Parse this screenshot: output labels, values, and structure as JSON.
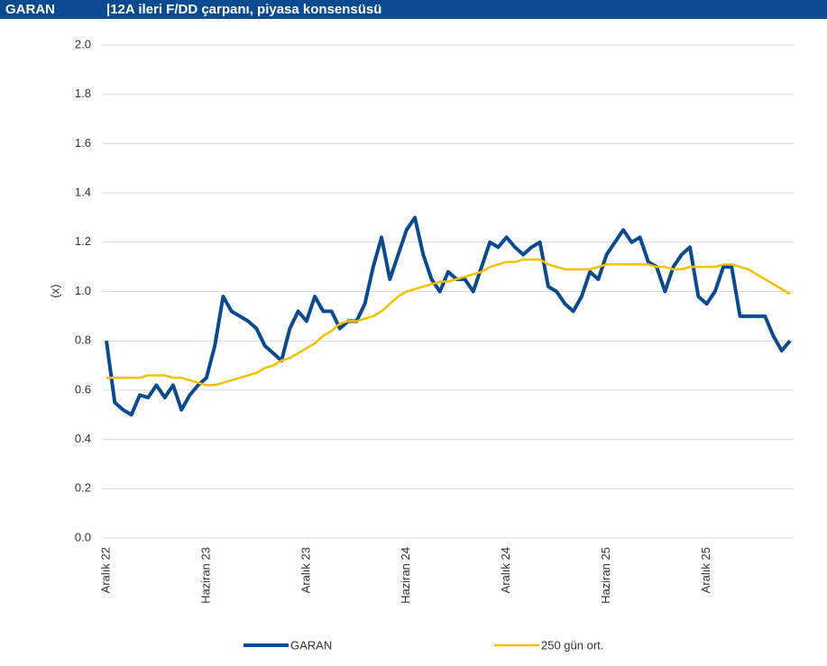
{
  "header": {
    "ticker": "GARAN",
    "title": "|12A ileri F/DD çarpanı, piyasa konsensüsü"
  },
  "chart_data": {
    "type": "line",
    "ylabel": "(x)",
    "categories": [
      "Aralık 22",
      null,
      null,
      null,
      null,
      null,
      null,
      null,
      null,
      null,
      null,
      null,
      "Haziran 23",
      null,
      null,
      null,
      null,
      null,
      null,
      null,
      null,
      null,
      null,
      null,
      "Aralık 23",
      null,
      null,
      null,
      null,
      null,
      null,
      null,
      null,
      null,
      null,
      null,
      "Haziran 24",
      null,
      null,
      null,
      null,
      null,
      null,
      null,
      null,
      null,
      null,
      null,
      "Aralık 24",
      null,
      null,
      null,
      null,
      null,
      null,
      null,
      null,
      null,
      null,
      null,
      "Haziran 25",
      null,
      null,
      null,
      null,
      null,
      null,
      null,
      null,
      null,
      null,
      null,
      "Aralık 25",
      null,
      null,
      null,
      null,
      null,
      null,
      null,
      null,
      null,
      null
    ],
    "series": [
      {
        "name": "GARAN",
        "color": "#0b4a8f",
        "width": 4,
        "values": [
          0.8,
          0.55,
          0.52,
          0.5,
          0.58,
          0.57,
          0.62,
          0.57,
          0.62,
          0.52,
          0.58,
          0.62,
          0.65,
          0.78,
          0.98,
          0.92,
          0.9,
          0.88,
          0.85,
          0.78,
          0.75,
          0.72,
          0.85,
          0.92,
          0.88,
          0.98,
          0.92,
          0.92,
          0.85,
          0.88,
          0.88,
          0.95,
          1.1,
          1.22,
          1.05,
          1.15,
          1.25,
          1.3,
          1.15,
          1.05,
          1.0,
          1.08,
          1.05,
          1.05,
          1.0,
          1.1,
          1.2,
          1.18,
          1.22,
          1.18,
          1.15,
          1.18,
          1.2,
          1.02,
          1.0,
          0.95,
          0.92,
          0.98,
          1.08,
          1.05,
          1.15,
          1.2,
          1.25,
          1.2,
          1.22,
          1.12,
          1.1,
          1.0,
          1.1,
          1.15,
          1.18,
          0.98,
          0.95,
          1.0,
          1.1,
          1.1,
          0.9,
          0.9,
          0.9,
          0.9,
          0.82,
          0.76,
          0.8
        ]
      },
      {
        "name": "250 gün ort.",
        "color": "#f5c000",
        "width": 2.5,
        "values": [
          0.65,
          0.65,
          0.65,
          0.65,
          0.65,
          0.66,
          0.66,
          0.66,
          0.65,
          0.65,
          0.64,
          0.63,
          0.62,
          0.62,
          0.63,
          0.64,
          0.65,
          0.66,
          0.67,
          0.69,
          0.7,
          0.72,
          0.73,
          0.75,
          0.77,
          0.79,
          0.82,
          0.84,
          0.87,
          0.88,
          0.88,
          0.89,
          0.9,
          0.92,
          0.95,
          0.98,
          1.0,
          1.01,
          1.02,
          1.03,
          1.04,
          1.04,
          1.05,
          1.06,
          1.07,
          1.08,
          1.1,
          1.11,
          1.12,
          1.12,
          1.13,
          1.13,
          1.13,
          1.11,
          1.1,
          1.09,
          1.09,
          1.09,
          1.09,
          1.1,
          1.11,
          1.11,
          1.11,
          1.11,
          1.11,
          1.11,
          1.1,
          1.1,
          1.09,
          1.09,
          1.1,
          1.1,
          1.1,
          1.1,
          1.11,
          1.11,
          1.1,
          1.09,
          1.07,
          1.05,
          1.03,
          1.01,
          0.99
        ]
      }
    ],
    "ylim": [
      0,
      2.0
    ],
    "yticks": [
      {
        "value": 0,
        "label": "0.0"
      },
      0.2,
      0.4,
      0.6,
      0.8,
      {
        "value": 1,
        "label": "1.0"
      },
      1.2,
      1.4,
      1.6,
      1.8,
      {
        "value": 2,
        "label": "2.0"
      }
    ],
    "grid": true,
    "legend": "bottom"
  }
}
